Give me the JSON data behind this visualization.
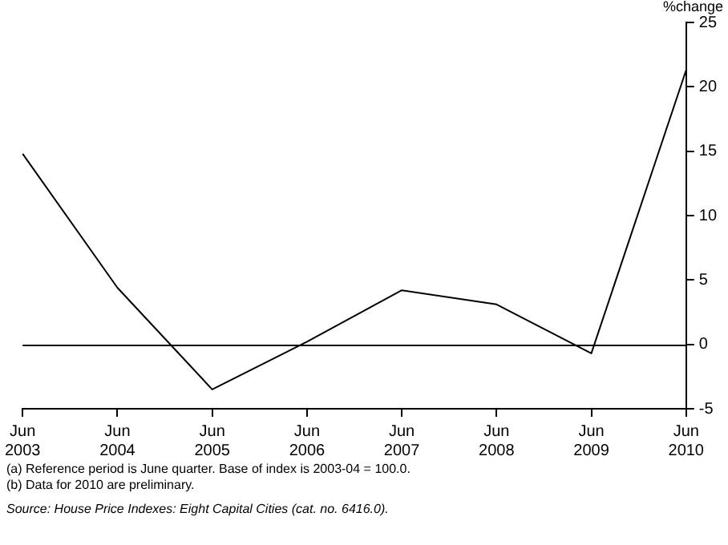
{
  "chart_data": {
    "type": "line",
    "ylabel": "%change",
    "categories": [
      "Jun 2003",
      "Jun 2004",
      "Jun 2005",
      "Jun 2006",
      "Jun 2007",
      "Jun 2008",
      "Jun 2009",
      "Jun 2010"
    ],
    "series": [
      {
        "color": "#000000",
        "values": [
          14.8,
          4.4,
          -3.5,
          0.2,
          4.2,
          3.1,
          -0.7,
          21.3
        ]
      }
    ],
    "ylim": [
      -5,
      25
    ],
    "yticks": [
      -5,
      0,
      5,
      10,
      15,
      20,
      25
    ],
    "ref_lines": [
      {
        "axis": "y",
        "value": 0,
        "color": "#000000"
      }
    ],
    "grid": false,
    "legend": false,
    "marker": "none",
    "line_style": "solid",
    "annotations": [
      "(a) Reference period is June quarter. Base of index is 2003-04 = 100.0.",
      "(b) Data for 2010 are preliminary.",
      "Source: House Price Indexes: Eight Capital Cities (cat. no. 6416.0)."
    ]
  }
}
